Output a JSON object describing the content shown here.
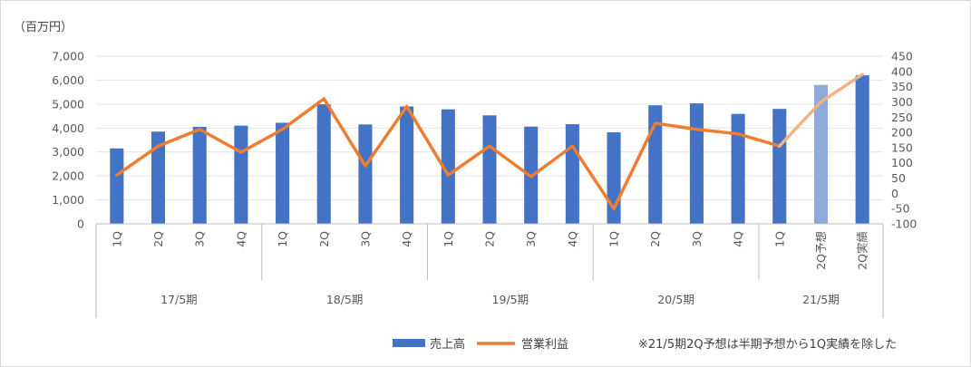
{
  "chart_data": {
    "type": "bar+line",
    "unit_label": "（百万円）",
    "categories": [
      "1Q",
      "2Q",
      "3Q",
      "4Q",
      "1Q",
      "2Q",
      "3Q",
      "4Q",
      "1Q",
      "2Q",
      "3Q",
      "4Q",
      "1Q",
      "2Q",
      "3Q",
      "4Q",
      "1Q",
      "2Q予想",
      "2Q実績"
    ],
    "groups": [
      {
        "label": "17/5期",
        "span": 4
      },
      {
        "label": "18/5期",
        "span": 4
      },
      {
        "label": "19/5期",
        "span": 4
      },
      {
        "label": "20/5期",
        "span": 4
      },
      {
        "label": "21/5期",
        "span": 3
      }
    ],
    "left_axis": {
      "min": 0,
      "max": 7000,
      "step": 1000,
      "tick_labels": [
        "0",
        "1,000",
        "2,000",
        "3,000",
        "4,000",
        "5,000",
        "6,000",
        "7,000"
      ]
    },
    "right_axis": {
      "min": -100,
      "max": 450,
      "step": 50,
      "tick_labels": [
        "-100",
        "-50",
        "0",
        "50",
        "100",
        "150",
        "200",
        "250",
        "300",
        "350",
        "400",
        "450"
      ]
    },
    "series": [
      {
        "name": "売上高",
        "type": "bar",
        "axis": "left",
        "color": "#4472c4",
        "forecast_color": "#8eaadb",
        "values": [
          3150,
          3850,
          4050,
          4100,
          4220,
          4990,
          4150,
          4900,
          4780,
          4530,
          4060,
          4160,
          3820,
          4950,
          5030,
          4590,
          4800,
          5800,
          6200
        ],
        "forecast_index": 17
      },
      {
        "name": "営業利益",
        "type": "line",
        "axis": "right",
        "color": "#ed7d31",
        "forecast_color": "#f4b183",
        "values": [
          60,
          155,
          210,
          135,
          210,
          310,
          90,
          285,
          60,
          155,
          55,
          155,
          -50,
          230,
          210,
          195,
          155,
          300,
          390
        ],
        "forecast_from_index": 16
      }
    ],
    "note": "※21/5期2Q予想は半期予想から1Q実績を除した"
  }
}
